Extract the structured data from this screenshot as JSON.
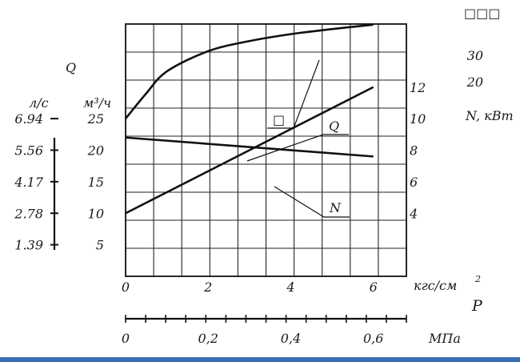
{
  "chart_data": {
    "type": "line",
    "corner_label": "□□□",
    "left_axis_q_symbol": "Q",
    "left_axis_ls_unit": "л/с",
    "left_axis_m3h_unit": "м³/ч",
    "ls_ticks": [
      "6.94",
      "5.56",
      "4.17",
      "2.78",
      "1.39"
    ],
    "m3h_ticks": [
      "25",
      "20",
      "15",
      "10",
      "5"
    ],
    "right_axis_unit": "N, кВт",
    "right_upper_ticks": [
      "30",
      "20"
    ],
    "right_ticks": [
      "12",
      "10",
      "8",
      "6",
      "4"
    ],
    "x_axis_top_unit": "кгс/см",
    "x_axis_top_unit_sup": "2",
    "x_axis_symbol": "P",
    "x_axis_bottom_unit": "МПа",
    "x_ticks_kgf": [
      "0",
      "2",
      "4",
      "6"
    ],
    "x_ticks_mpa": [
      "0",
      "0,2",
      "0,4",
      "0,6"
    ],
    "xlim": [
      0,
      6.8
    ],
    "ylim_m3h": [
      0,
      40
    ],
    "ylim_kw": [
      0,
      16
    ],
    "curve_labels": {
      "top_curve": "□",
      "q_curve": "Q",
      "n_curve": "N"
    },
    "series": [
      {
        "x": [
          0,
          0.5,
          1,
          2,
          3,
          4,
          5,
          6
        ],
        "y_m3h": [
          25,
          29,
          32.5,
          35.7,
          37.3,
          38.4,
          39.2,
          39.9
        ]
      },
      {
        "name": "Q",
        "x": [
          0,
          6
        ],
        "y_m3h": [
          22,
          19
        ]
      },
      {
        "name": "N",
        "x": [
          0,
          6
        ],
        "y_kw": [
          4,
          12
        ]
      }
    ]
  }
}
